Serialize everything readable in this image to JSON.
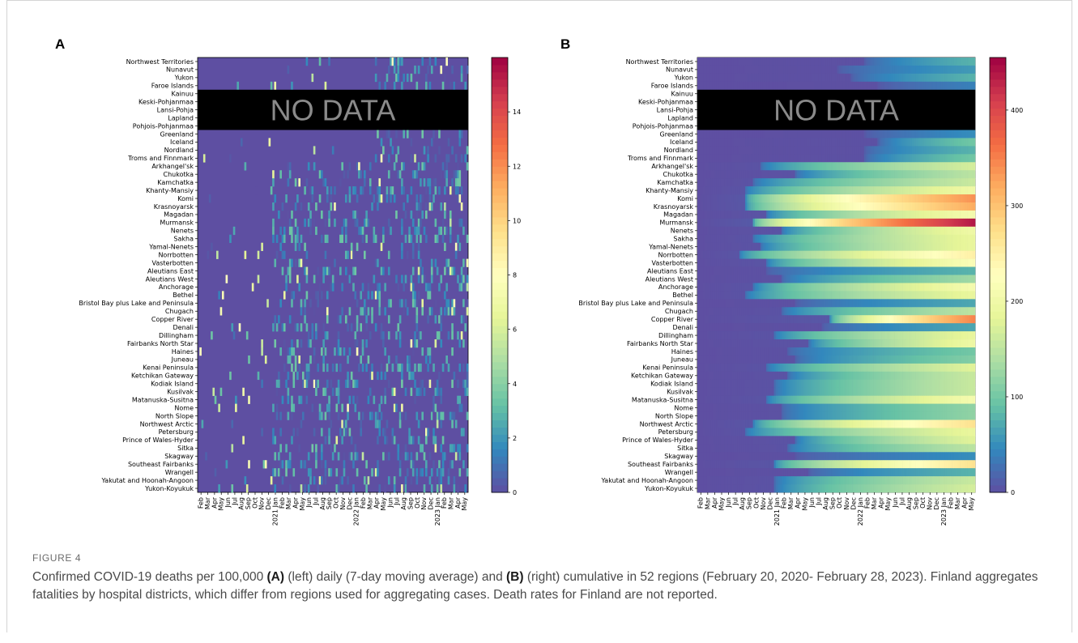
{
  "figure": {
    "label": "FIGURE 4",
    "caption": {
      "pre": "Confirmed COVID-19 deaths per 100,000 ",
      "a_ref": "(A)",
      "mid": " (left) daily (7-day moving average) and ",
      "b_ref": "(B)",
      "post": " (right) cumulative in 52 regions (February 20, 2020- February 28, 2023). Finland aggregates fatalities by hospital districts, which differ from regions used for aggregating cases. Death rates for Finland are not reported."
    }
  },
  "chart_data": [
    {
      "type": "heatmap",
      "panel_label": "A",
      "title": "",
      "no_data_text": "NO DATA",
      "no_data_rows": [
        "Kainuu",
        "Keski-Pohjanmaa",
        "Lansi-Pohja",
        "Lapland",
        "Pohjois-Pohjanmaa"
      ],
      "rows": [
        "Northwest Territories",
        "Nunavut",
        "Yukon",
        "Faroe Islands",
        "Kainuu",
        "Keski-Pohjanmaa",
        "Lansi-Pohja",
        "Lapland",
        "Pohjois-Pohjanmaa",
        "Greenland",
        "Iceland",
        "Nordland",
        "Troms and Finnmark",
        "Arkhangel'sk",
        "Chukotka",
        "Kamchatka",
        "Khanty-Mansiy",
        "Komi",
        "Krasnoyarsk",
        "Magadan",
        "Murmansk",
        "Nenets",
        "Sakha",
        "Yamal-Nenets",
        "Norrbotten",
        "Vasterbotten",
        "Aleutians East",
        "Aleutians West",
        "Anchorage",
        "Bethel",
        "Bristol Bay plus Lake and Peninsula",
        "Chugach",
        "Copper River",
        "Denali",
        "Dillingham",
        "Fairbanks North Star",
        "Haines",
        "Juneau",
        "Kenai Peninsula",
        "Ketchikan Gateway",
        "Kodiak Island",
        "Kusilvak",
        "Matanuska-Susitna",
        "Nome",
        "North Slope",
        "Northwest Arctic",
        "Petersburg",
        "Prince of Wales-Hyder",
        "Sitka",
        "Skagway",
        "Southeast Fairbanks",
        "Wrangell",
        "Yakutat and Hoonah-Angoon",
        "Yukon-Koyukuk"
      ],
      "x_ticks": [
        "Feb",
        "Mar",
        "Apr",
        "May",
        "Jun",
        "Jul",
        "Aug",
        "Sep",
        "Oct",
        "Nov",
        "Dec",
        "2021 Jan",
        "Feb",
        "Mar",
        "Apr",
        "May",
        "Jun",
        "Jul",
        "Aug",
        "Sep",
        "Oct",
        "Nov",
        "Dec",
        "2022 Jan",
        "Feb",
        "Mar",
        "Apr",
        "May",
        "Jun",
        "Jul",
        "Aug",
        "Sep",
        "Oct",
        "Nov",
        "Dec",
        "2023 Jan",
        "Feb",
        "Mar",
        "Apr",
        "May"
      ],
      "colorbar": {
        "min": 0,
        "max": 16,
        "ticks": [
          0,
          2,
          4,
          6,
          8,
          10,
          12,
          14
        ]
      },
      "colormap": "Spectral_r",
      "note": "Sparse daily values, mostly 0-4; spikes up to ~12 (Skagway, Jun 2022)"
    },
    {
      "type": "heatmap",
      "panel_label": "B",
      "title": "",
      "no_data_text": "NO DATA",
      "no_data_rows": [
        "Kainuu",
        "Keski-Pohjanmaa",
        "Lansi-Pohja",
        "Lapland",
        "Pohjois-Pohjanmaa"
      ],
      "rows": [
        "Northwest Territories",
        "Nunavut",
        "Yukon",
        "Faroe Islands",
        "Kainuu",
        "Keski-Pohjanmaa",
        "Lansi-Pohja",
        "Lapland",
        "Pohjois-Pohjanmaa",
        "Greenland",
        "Iceland",
        "Nordland",
        "Troms and Finnmark",
        "Arkhangel'sk",
        "Chukotka",
        "Kamchatka",
        "Khanty-Mansiy",
        "Komi",
        "Krasnoyarsk",
        "Magadan",
        "Murmansk",
        "Nenets",
        "Sakha",
        "Yamal-Nenets",
        "Norrbotten",
        "Vasterbotten",
        "Aleutians East",
        "Aleutians West",
        "Anchorage",
        "Bethel",
        "Bristol Bay plus Lake and Peninsula",
        "Chugach",
        "Copper River",
        "Denali",
        "Dillingham",
        "Fairbanks North Star",
        "Haines",
        "Juneau",
        "Kenai Peninsula",
        "Ketchikan Gateway",
        "Kodiak Island",
        "Kusilvak",
        "Matanuska-Susitna",
        "Nome",
        "North Slope",
        "Northwest Arctic",
        "Petersburg",
        "Prince of Wales-Hyder",
        "Sitka",
        "Skagway",
        "Southeast Fairbanks",
        "Wrangell",
        "Yakutat and Hoonah-Angoon",
        "Yukon-Koyukuk"
      ],
      "x_ticks": [
        "Feb",
        "Mar",
        "Apr",
        "May",
        "Jun",
        "Jul",
        "Aug",
        "Sep",
        "Oct",
        "Nov",
        "Dec",
        "2021 Jan",
        "Feb",
        "Mar",
        "Apr",
        "May",
        "Jun",
        "Jul",
        "Aug",
        "Sep",
        "Oct",
        "Nov",
        "Dec",
        "2022 Jan",
        "Feb",
        "Mar",
        "Apr",
        "May",
        "Jun",
        "Jul",
        "Aug",
        "Sep",
        "Oct",
        "Nov",
        "Dec",
        "2023 Jan",
        "Feb",
        "Mar",
        "Apr",
        "May"
      ],
      "colorbar": {
        "min": 0,
        "max": 455,
        "ticks": [
          0,
          100,
          200,
          300,
          400
        ]
      },
      "colormap": "Spectral_r",
      "final_cumulative": [
        80,
        60,
        80,
        40,
        null,
        null,
        null,
        null,
        null,
        50,
        100,
        80,
        100,
        170,
        150,
        160,
        200,
        340,
        320,
        210,
        440,
        200,
        190,
        190,
        250,
        220,
        80,
        130,
        210,
        190,
        70,
        150,
        350,
        70,
        190,
        200,
        100,
        110,
        180,
        160,
        160,
        160,
        210,
        120,
        120,
        270,
        190,
        180,
        150,
        50,
        270,
        80,
        160,
        170
      ],
      "rise_start_month": [
        24,
        20,
        22,
        26,
        null,
        null,
        null,
        null,
        null,
        24,
        26,
        24,
        24,
        9,
        14,
        8,
        7,
        7,
        7,
        10,
        8,
        12,
        8,
        9,
        6,
        10,
        10,
        12,
        8,
        7,
        14,
        12,
        19,
        18,
        11,
        16,
        13,
        14,
        10,
        13,
        11,
        11,
        10,
        12,
        12,
        8,
        7,
        14,
        13,
        14,
        11,
        16,
        11,
        11
      ],
      "note": "Monotonic cumulative curves; highest in Murmansk (~440) and Copper River (~350)"
    }
  ]
}
